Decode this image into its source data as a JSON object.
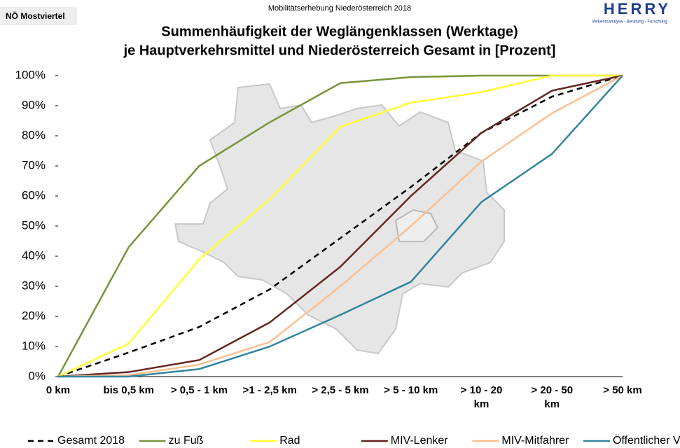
{
  "header": {
    "region": "NÖ Mostviertel",
    "survey": "Mobilitätserhebung Niederösterreich 2018",
    "logo": "HERRY",
    "logo_tagline": "Verkehrsanalyse - Beratung - Forschung"
  },
  "chart_data": {
    "type": "line",
    "title": [
      "Summenhäufigkeit der Weglängenklassen (Werktage)",
      "je Hauptverkehrsmittel und Niederösterreich Gesamt in [Prozent]"
    ],
    "categories": [
      "0 km",
      "bis 0,5 km",
      "> 0,5 - 1 km",
      ">1 - 2,5 km",
      "> 2,5 - 5 km",
      "> 5 - 10 km",
      "> 10 - 20 km",
      "> 20 - 50 km",
      "> 50 km"
    ],
    "series": [
      {
        "name": "Gesamt 2018",
        "color": "#000000",
        "style": "dashed",
        "values": [
          0,
          8,
          16.5,
          29,
          46,
          63,
          81,
          93,
          100
        ]
      },
      {
        "name": "zu Fuß",
        "color": "#77933c",
        "style": "solid",
        "values": [
          0,
          43,
          70,
          84.5,
          97.5,
          99.5,
          100,
          100,
          100
        ]
      },
      {
        "name": "Rad",
        "color": "#ffff33",
        "style": "solid",
        "values": [
          0,
          11,
          39,
          59,
          83,
          91,
          94.5,
          100,
          100
        ]
      },
      {
        "name": "MIV-Lenker",
        "color": "#632523",
        "style": "solid",
        "values": [
          0,
          1.5,
          5.5,
          18,
          36.5,
          60,
          81,
          95,
          100
        ]
      },
      {
        "name": "MIV-Mitfahrer",
        "color": "#fac090",
        "style": "solid",
        "values": [
          0,
          0.5,
          4,
          11.5,
          30,
          50,
          71.5,
          87.5,
          100
        ]
      },
      {
        "name": "Öffentlicher Verkehr",
        "color": "#31859c",
        "style": "solid",
        "values": [
          0,
          0,
          2.5,
          10,
          20.5,
          31.5,
          58,
          74,
          100
        ]
      }
    ],
    "ylim": [
      0,
      100
    ],
    "yticks": [
      {
        "value": 0,
        "label": "0%"
      },
      {
        "value": 10,
        "label": "10%"
      },
      {
        "value": 20,
        "label": "20%"
      },
      {
        "value": 30,
        "label": "30%"
      },
      {
        "value": 40,
        "label": "40%"
      },
      {
        "value": 50,
        "label": "50%"
      },
      {
        "value": 60,
        "label": "60%"
      },
      {
        "value": 70,
        "label": "70%"
      },
      {
        "value": 80,
        "label": "80%"
      },
      {
        "value": 90,
        "label": "90%"
      },
      {
        "value": 100,
        "label": "100%"
      }
    ],
    "grid": false,
    "legend": "bottom"
  }
}
